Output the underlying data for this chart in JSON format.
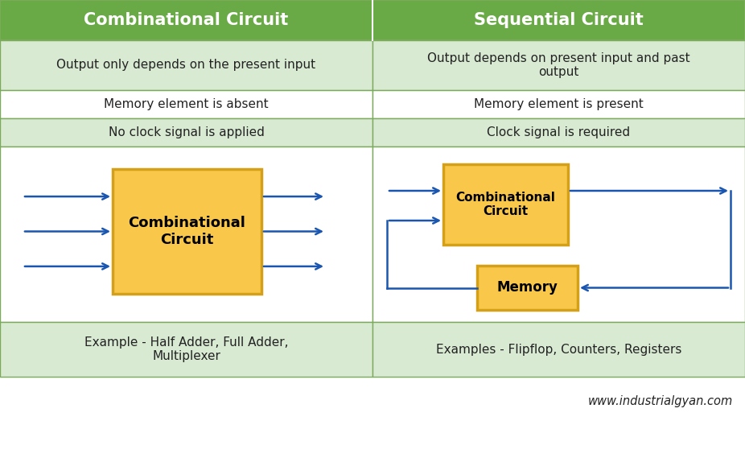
{
  "title_left": "Combinational Circuit",
  "title_right": "Sequential Circuit",
  "header_bg": "#6aaa46",
  "header_text_color": "#ffffff",
  "row1_bg": "#d9ead3",
  "row2_bg": "#ffffff",
  "row3_bg": "#d9ead3",
  "row4_bg": "#ffffff",
  "row5_bg": "#d9ead3",
  "row1_left": "Output only depends on the present input",
  "row1_right": "Output depends on present input and past\noutput",
  "row2_left": "Memory element is absent",
  "row2_right": "Memory element is present",
  "row3_left": "No clock signal is applied",
  "row3_right": "Clock signal is required",
  "row5_left": "Example - Half Adder, Full Adder,\nMultiplexer",
  "row5_right": "Examples - Flipflop, Counters, Registers",
  "box_fill": "#f9c84a",
  "box_edge": "#d4a017",
  "arrow_color": "#1a56b0",
  "border_color": "#7aaa5a",
  "watermark": "www.industrialgyan.com",
  "watermark_color": "#222222",
  "fig_width": 9.26,
  "fig_height": 5.64,
  "dpi": 100
}
